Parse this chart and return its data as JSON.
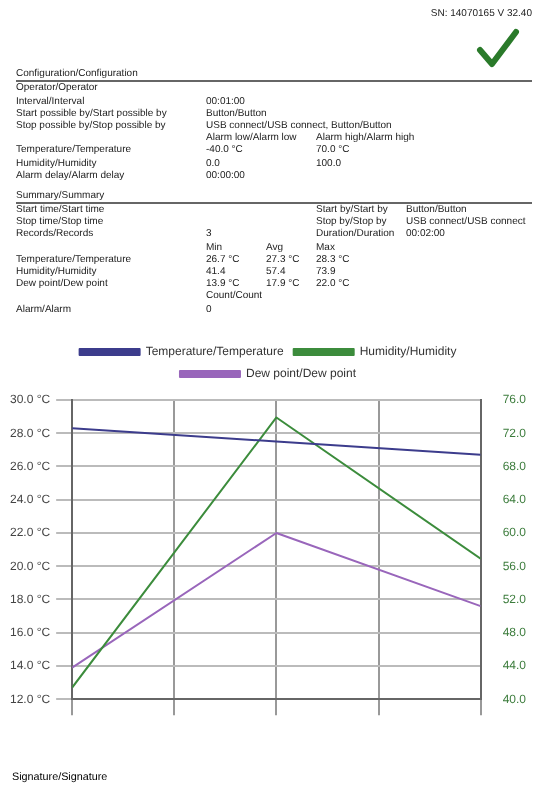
{
  "chart_data": {
    "type": "line",
    "annotations": [
      "SN: 14070165 V 32.40",
      "Configuration/Configuration",
      "Operator/Operator",
      "Interval/Interval\t00:01:00",
      "Start possible by/Start possible by\tButton/Button",
      "Stop possible by/Stop possible by\tUSB connect/USB connect, Button/Button",
      "\tAlarm low/Alarm low\t\tAlarm high/Alarm high",
      "Temperature/Temperature\t-40.0 °C\t\t70.0 °C",
      "Humidity/Humidity\t0.0\t\t100.0",
      "Alarm delay/Alarm delay\t00:00:00",
      "Summary/Summary",
      "Start time/Start time\t\t\tStart by/Start by\tButton/Button",
      "Stop time/Stop time\t\t\tStop by/Stop by\tUSB connect/USB connect",
      "Records/Records\t3\t\tDuration/Duration\t00:02:00",
      "\tMin\tAvg\tMax",
      "Temperature/Temperature\t26.7 °C\t27.3 °C\t28.3 °C",
      "Humidity/Humidity\t41.4\t57.4\t73.9",
      "Dew point/Dew point\t13.9 °C\t17.9 °C\t22.0 °C",
      "\tCount/Count",
      "Alarm/Alarm\t0",
      "Signature/Signature"
    ],
    "categories": [
      null,
      null,
      null
    ],
    "series": [
      {
        "name": "Temperature/Temperature",
        "color": "#3c3c8c",
        "values": [
          28.3,
          27.5,
          26.7
        ]
      },
      {
        "name": "Humidity/Humidity",
        "color": "#3c8c3c",
        "axis": "y2",
        "values": [
          41.4,
          73.9,
          56.9
        ]
      },
      {
        "name": "Dew point/Dew point",
        "color": "#9966bb",
        "values": [
          13.9,
          22.0,
          17.6
        ]
      }
    ],
    "ylim": [
      12,
      30
    ],
    "yticks": [
      {
        "value": 12,
        "label": "12.0 °C"
      },
      {
        "value": 14,
        "label": "14.0 °C"
      },
      {
        "value": 16,
        "label": "16.0 °C"
      },
      {
        "value": 18,
        "label": "18.0 °C"
      },
      {
        "value": 20,
        "label": "20.0 °C"
      },
      {
        "value": 22,
        "label": "22.0 °C"
      },
      {
        "value": 24,
        "label": "24.0 °C"
      },
      {
        "value": 26,
        "label": "26.0 °C"
      },
      {
        "value": 28,
        "label": "28.0 °C"
      },
      {
        "value": 30,
        "label": "30.0 °C"
      }
    ],
    "y2lim": [
      40,
      76
    ],
    "y2ticks": [
      {
        "value": 40,
        "label": "40.0"
      },
      {
        "value": 44,
        "label": "44.0"
      },
      {
        "value": 48,
        "label": "48.0"
      },
      {
        "value": 52,
        "label": "52.0"
      },
      {
        "value": 56,
        "label": "56.0"
      },
      {
        "value": 60,
        "label": "60.0"
      },
      {
        "value": 64,
        "label": "64.0"
      },
      {
        "value": 68,
        "label": "68.0"
      },
      {
        "value": 72,
        "label": "72.0"
      },
      {
        "value": 76,
        "label": "76.0"
      }
    ],
    "grid": true,
    "legend": "top",
    "marker": "none",
    "line_style": "solid"
  }
}
